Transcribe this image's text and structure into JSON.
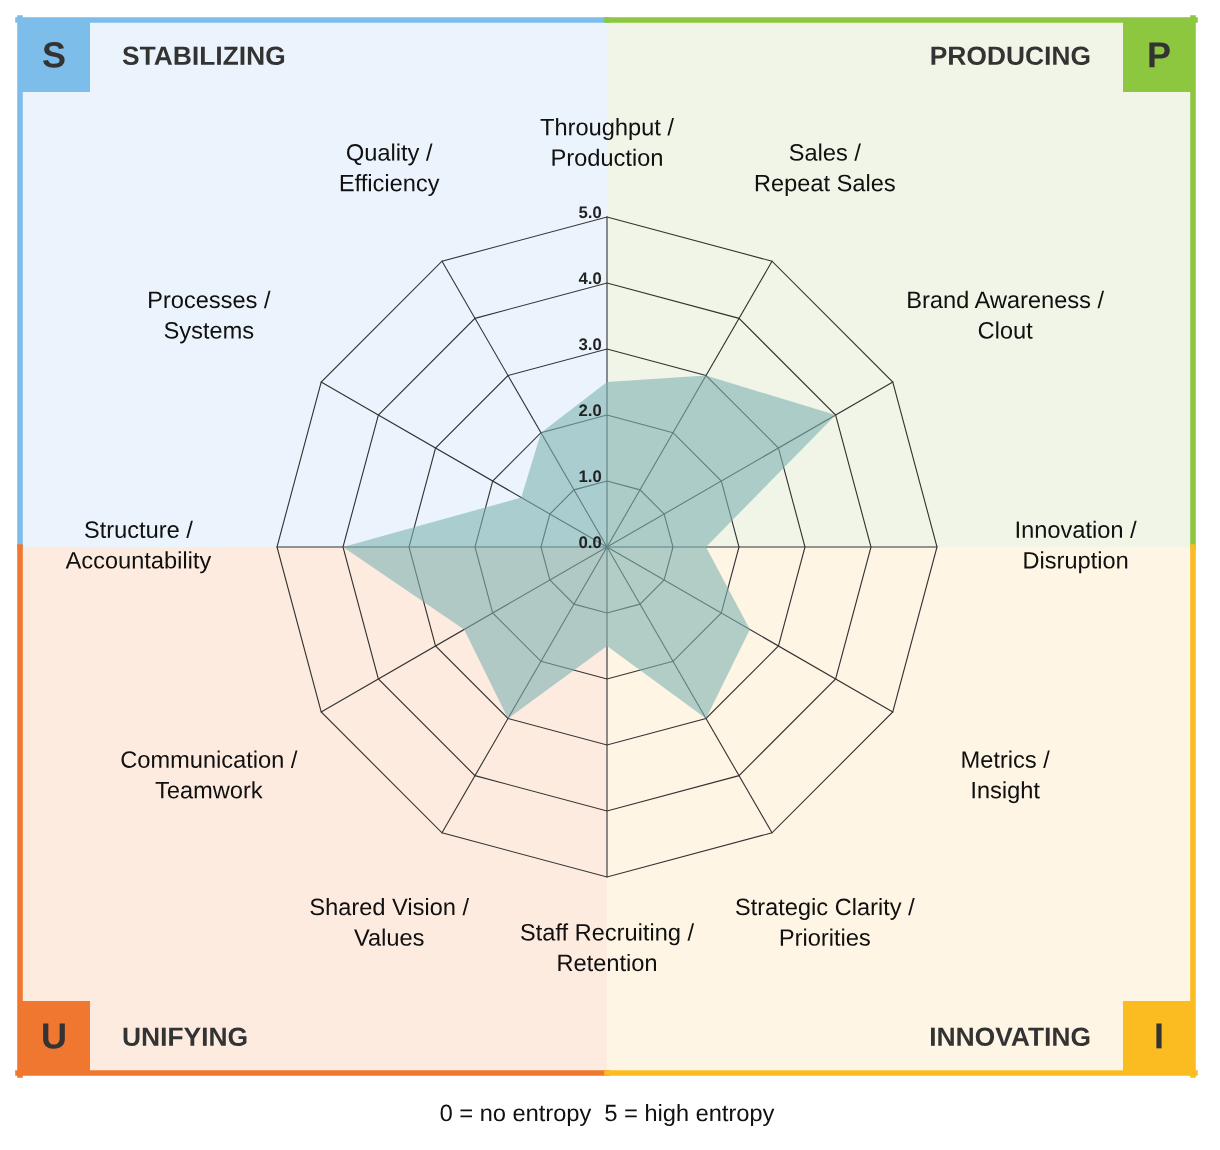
{
  "chart_data": {
    "type": "radar",
    "categories": [
      "Throughput /\nProduction",
      "Sales /\nRepeat Sales",
      "Brand Awareness /\nClout",
      "Innovation /\nDisruption",
      "Metrics /\nInsight",
      "Strategic Clarity /\nPriorities",
      "Staff Recruiting /\nRetention",
      "Shared Vision /\nValues",
      "Communication /\nTeamwork",
      "Structure /\nAccountability",
      "Processes /\nSystems",
      "Quality /\nEfficiency"
    ],
    "series": [
      {
        "color": "#7fb3b3",
        "values": [
          2.5,
          3.0,
          4.0,
          1.5,
          2.5,
          3.0,
          1.5,
          3.0,
          2.5,
          4.0,
          1.5,
          2.0
        ]
      }
    ],
    "ylim": [
      0,
      5
    ],
    "yticks": [
      {
        "value": 0,
        "label": "0.0"
      },
      {
        "value": 1,
        "label": "1.0"
      },
      {
        "value": 2,
        "label": "2.0"
      },
      {
        "value": 3,
        "label": "3.0"
      },
      {
        "value": 4,
        "label": "4.0"
      },
      {
        "value": 5,
        "label": "5.0"
      }
    ],
    "grid": true,
    "annotations": [
      "S",
      "STABILIZING",
      "P",
      "PRODUCING",
      "U",
      "UNIFYING",
      "I",
      "INNOVATING",
      "0 = no entropy  5 = high entropy"
    ]
  }
}
